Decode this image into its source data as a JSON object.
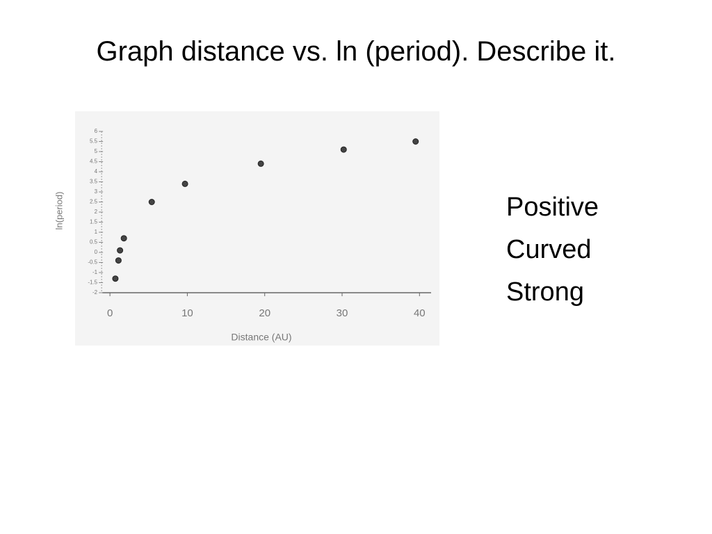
{
  "slide": {
    "title": "Graph distance vs. ln (period). Describe it.",
    "points": [
      "Positive",
      "Curved",
      "Strong"
    ]
  },
  "chart_data": {
    "type": "scatter",
    "x_label": "Distance (AU)",
    "y_label": "ln(period)",
    "x": [
      0.7,
      1.1,
      1.3,
      1.8,
      5.4,
      9.7,
      19.5,
      30.2,
      39.5
    ],
    "values": [
      -1.3,
      -0.4,
      0.1,
      0.7,
      2.5,
      3.4,
      4.4,
      5.1,
      5.5
    ],
    "color": "#444444",
    "xlim": [
      -1,
      41.5
    ],
    "xticks": [
      0,
      10,
      20,
      30,
      40
    ],
    "ylim": [
      -2,
      6
    ],
    "yticks": [
      -2,
      -1.5,
      -1,
      -0.5,
      0,
      0.5,
      1,
      1.5,
      2,
      2.5,
      3,
      3.5,
      4,
      4.5,
      5,
      5.5,
      6
    ]
  }
}
